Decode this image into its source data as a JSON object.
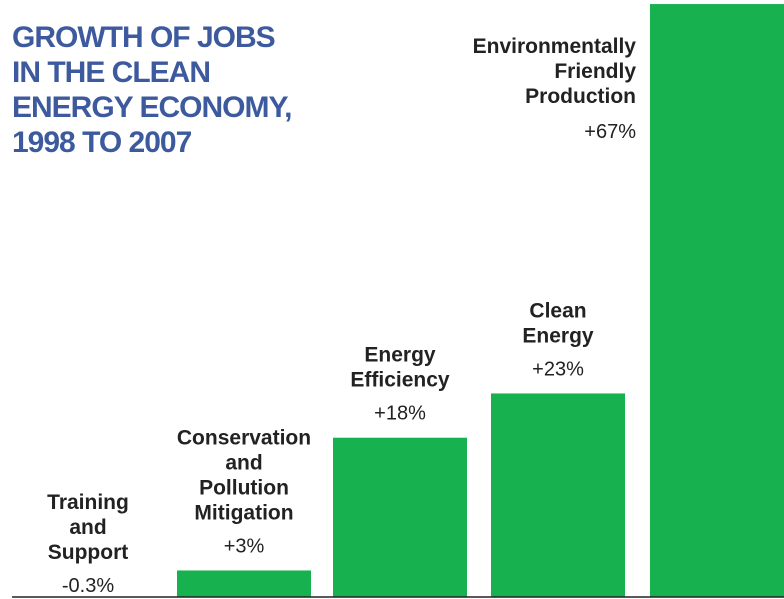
{
  "title_lines": [
    "GROWTH OF JOBS",
    "IN THE CLEAN",
    "ENERGY ECONOMY,",
    "1998 TO 2007"
  ],
  "colors": {
    "bar": "#18b14f",
    "title": "#3d5a9e",
    "text": "#222222",
    "baseline": "#222222"
  },
  "chart_data": {
    "type": "bar",
    "title": "GROWTH OF JOBS IN THE CLEAN ENERGY ECONOMY, 1998 TO 2007",
    "categories": [
      "Training and Support",
      "Conservation and Pollution Mitigation",
      "Energy Efficiency",
      "Clean Energy",
      "Environmentally Friendly Production"
    ],
    "category_label_lines": [
      [
        "Training",
        "and",
        "Support"
      ],
      [
        "Conservation",
        "and",
        "Pollution",
        "Mitigation"
      ],
      [
        "Energy",
        "Efficiency"
      ],
      [
        "Clean",
        "Energy"
      ],
      [
        "Environmentally",
        "Friendly",
        "Production"
      ]
    ],
    "values": [
      -0.3,
      3,
      18,
      23,
      67
    ],
    "value_labels": [
      "-0.3%",
      "+3%",
      "+18%",
      "+23%",
      "+67%"
    ],
    "unit": "%",
    "xlabel": "",
    "ylabel": "",
    "grid": false,
    "legend": "none"
  }
}
